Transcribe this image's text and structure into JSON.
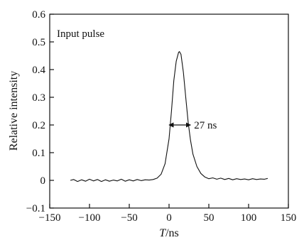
{
  "chart_data": {
    "type": "line",
    "title": "",
    "xlabel": "T/ns",
    "xlabel_italic_part": "T",
    "xlabel_rest": "/ns",
    "ylabel": "Relative intensity",
    "xlim": [
      -150,
      150
    ],
    "ylim": [
      -0.1,
      0.6
    ],
    "xticks": [
      -150,
      -100,
      -50,
      0,
      50,
      100,
      150
    ],
    "xtick_labels": [
      "−150",
      "−100",
      "−50",
      "0",
      "50",
      "100",
      "150"
    ],
    "yticks": [
      -0.1,
      0,
      0.1,
      0.2,
      0.3,
      0.4,
      0.5,
      0.6
    ],
    "ytick_labels": [
      "−0.1",
      "0",
      "0.1",
      "0.2",
      "0.3",
      "0.4",
      "0.5",
      "0.6"
    ],
    "grid": false,
    "legend": "none",
    "line_color": "#111111",
    "annotations": [
      {
        "text": "Input pulse",
        "position": "top-left"
      },
      {
        "text": "27 ns",
        "type": "fwhm-arrow",
        "x_start": 0,
        "x_end": 27,
        "y": 0.2
      }
    ],
    "series": [
      {
        "x": [
          -124,
          -120,
          -115,
          -110,
          -105,
          -100,
          -95,
          -90,
          -85,
          -80,
          -75,
          -70,
          -65,
          -60,
          -55,
          -50,
          -45,
          -40,
          -35,
          -30,
          -25,
          -20,
          -15,
          -10,
          -5,
          0,
          3,
          6,
          9,
          12,
          13,
          15,
          18,
          21,
          24,
          27,
          30,
          35,
          40,
          45,
          50,
          55,
          60,
          65,
          70,
          75,
          80,
          85,
          90,
          95,
          100,
          105,
          110,
          115,
          120,
          124
        ],
        "y": [
          0.0,
          0.003,
          -0.004,
          0.002,
          -0.003,
          0.004,
          -0.002,
          0.003,
          -0.004,
          0.002,
          -0.003,
          0.001,
          -0.002,
          0.004,
          -0.003,
          0.002,
          -0.002,
          0.003,
          -0.001,
          0.002,
          0.001,
          0.003,
          0.008,
          0.022,
          0.06,
          0.15,
          0.25,
          0.36,
          0.43,
          0.462,
          0.465,
          0.455,
          0.39,
          0.3,
          0.21,
          0.145,
          0.095,
          0.05,
          0.025,
          0.012,
          0.006,
          0.009,
          0.004,
          0.008,
          0.003,
          0.007,
          0.002,
          0.006,
          0.003,
          0.005,
          0.002,
          0.006,
          0.003,
          0.005,
          0.004,
          0.007
        ]
      }
    ]
  }
}
